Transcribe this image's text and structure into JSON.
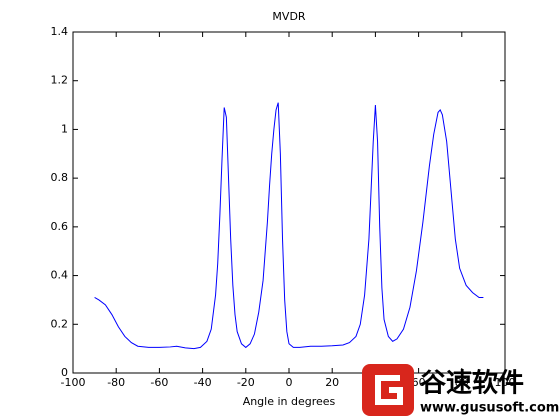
{
  "chart_data": {
    "type": "line",
    "title": "MVDR",
    "xlabel": "Angle in degrees",
    "x": [
      -90,
      -88,
      -85,
      -82,
      -79,
      -76,
      -73,
      -70,
      -65,
      -60,
      -55,
      -52,
      -48,
      -44,
      -41,
      -38,
      -36,
      -34,
      -33,
      -32,
      -31,
      -30,
      -29,
      -28,
      -27,
      -26,
      -25,
      -24,
      -22,
      -20,
      -18,
      -16,
      -14,
      -12,
      -11,
      -10,
      -9,
      -8,
      -7,
      -6,
      -5,
      -4,
      -3,
      -2,
      -1,
      0,
      2,
      5,
      10,
      15,
      20,
      25,
      28,
      31,
      33,
      35,
      37,
      38,
      39,
      40,
      41,
      42,
      43,
      44,
      46,
      48,
      50,
      53,
      56,
      59,
      62,
      65,
      67,
      69,
      70,
      71,
      73,
      75,
      77,
      79,
      82,
      85,
      88,
      90
    ],
    "series": [
      {
        "color": "#0000ff",
        "values": [
          0.31,
          0.3,
          0.28,
          0.24,
          0.19,
          0.15,
          0.125,
          0.11,
          0.105,
          0.105,
          0.107,
          0.11,
          0.103,
          0.1,
          0.105,
          0.13,
          0.18,
          0.32,
          0.45,
          0.65,
          0.88,
          1.09,
          1.05,
          0.8,
          0.55,
          0.36,
          0.24,
          0.17,
          0.12,
          0.105,
          0.12,
          0.16,
          0.25,
          0.38,
          0.5,
          0.62,
          0.77,
          0.9,
          1.0,
          1.08,
          1.11,
          0.9,
          0.55,
          0.3,
          0.17,
          0.12,
          0.105,
          0.105,
          0.11,
          0.11,
          0.112,
          0.115,
          0.125,
          0.15,
          0.2,
          0.32,
          0.55,
          0.75,
          0.95,
          1.1,
          0.95,
          0.6,
          0.35,
          0.22,
          0.15,
          0.13,
          0.14,
          0.18,
          0.27,
          0.42,
          0.62,
          0.85,
          0.98,
          1.07,
          1.08,
          1.06,
          0.95,
          0.75,
          0.55,
          0.43,
          0.36,
          0.33,
          0.31,
          0.31
        ]
      }
    ],
    "xlim": [
      -100,
      100
    ],
    "xticks": [
      -100,
      -80,
      -60,
      -40,
      -20,
      0,
      20,
      40,
      60,
      80,
      100
    ],
    "ylim": [
      0,
      1.4
    ],
    "yticks": [
      0,
      0.2,
      0.4,
      0.6,
      0.8,
      1,
      1.2,
      1.4
    ]
  },
  "watermark": {
    "name": "谷速软件",
    "url": "www.gususoft.com"
  }
}
